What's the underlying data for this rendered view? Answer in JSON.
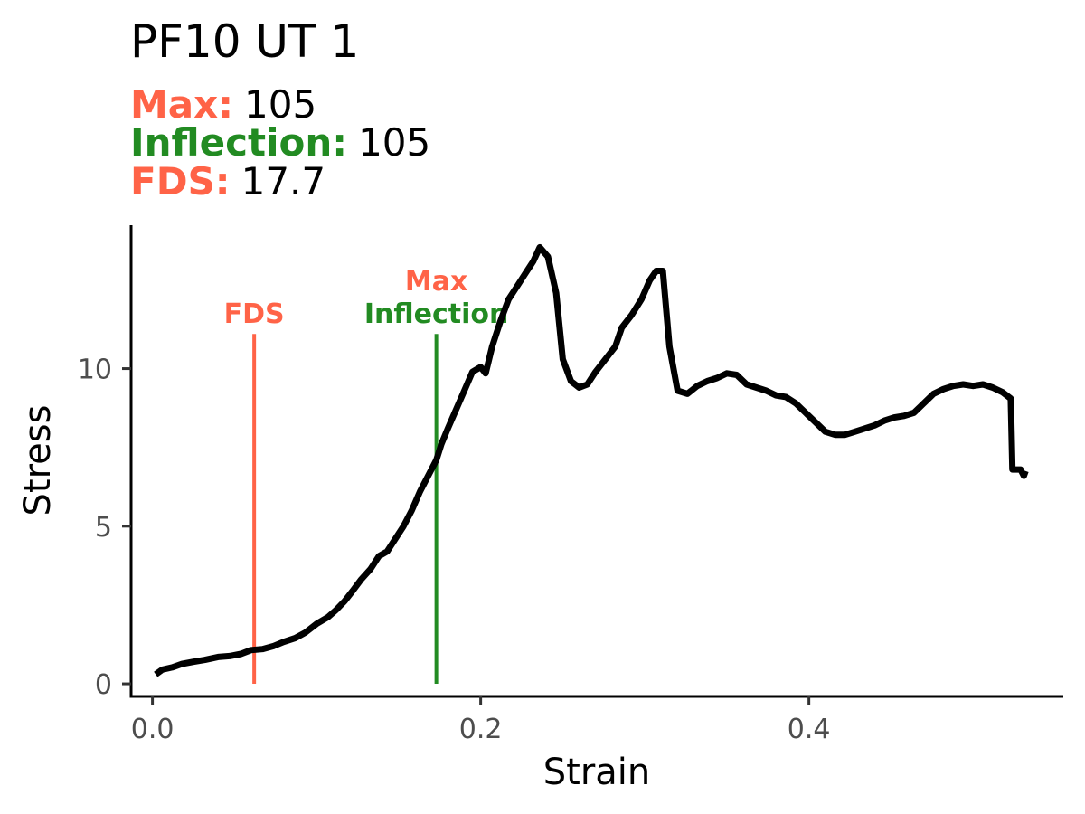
{
  "chart_data": {
    "type": "line",
    "title": "PF10 UT 1",
    "stats": [
      {
        "label": "Max:",
        "value": "105",
        "color": "#FF6347"
      },
      {
        "label": "Inflection:",
        "value": "105",
        "color": "#228B22"
      },
      {
        "label": "FDS:",
        "value": "17.7",
        "color": "#FF6347"
      }
    ],
    "xlabel": "Strain",
    "ylabel": "Stress",
    "xlim": [
      -0.013,
      0.555
    ],
    "ylim": [
      -0.4,
      14.55
    ],
    "xticks": [
      {
        "value": 0.0,
        "label": "0.0"
      },
      {
        "value": 0.2,
        "label": "0.2"
      },
      {
        "value": 0.4,
        "label": "0.4"
      }
    ],
    "yticks": [
      {
        "value": 0,
        "label": "0"
      },
      {
        "value": 5,
        "label": "5"
      },
      {
        "value": 10,
        "label": "10"
      }
    ],
    "grid": false,
    "line_color": "#000000",
    "vlines": [
      {
        "x": 0.062,
        "ymin": 0,
        "ymax": 11.1,
        "color": "#FF6347",
        "labels": [
          "FDS"
        ],
        "label_colors": [
          "#FF6347"
        ]
      },
      {
        "x": 0.173,
        "ymin": 0,
        "ymax": 11.1,
        "color": "#228B22",
        "labels": [
          "Max",
          "Inflection"
        ],
        "label_colors": [
          "#FF6347",
          "#228B22"
        ]
      }
    ],
    "series": [
      {
        "values": [
          [
            0.002,
            0.3
          ],
          [
            0.006,
            0.45
          ],
          [
            0.012,
            0.52
          ],
          [
            0.018,
            0.63
          ],
          [
            0.025,
            0.7
          ],
          [
            0.032,
            0.76
          ],
          [
            0.04,
            0.85
          ],
          [
            0.047,
            0.88
          ],
          [
            0.054,
            0.95
          ],
          [
            0.06,
            1.07
          ],
          [
            0.067,
            1.1
          ],
          [
            0.074,
            1.2
          ],
          [
            0.08,
            1.33
          ],
          [
            0.087,
            1.45
          ],
          [
            0.093,
            1.62
          ],
          [
            0.1,
            1.9
          ],
          [
            0.107,
            2.12
          ],
          [
            0.112,
            2.35
          ],
          [
            0.117,
            2.62
          ],
          [
            0.122,
            2.95
          ],
          [
            0.127,
            3.3
          ],
          [
            0.133,
            3.65
          ],
          [
            0.138,
            4.05
          ],
          [
            0.143,
            4.2
          ],
          [
            0.148,
            4.6
          ],
          [
            0.153,
            5.0
          ],
          [
            0.158,
            5.5
          ],
          [
            0.163,
            6.1
          ],
          [
            0.168,
            6.6
          ],
          [
            0.173,
            7.1
          ],
          [
            0.176,
            7.6
          ],
          [
            0.18,
            8.1
          ],
          [
            0.185,
            8.7
          ],
          [
            0.19,
            9.3
          ],
          [
            0.195,
            9.9
          ],
          [
            0.2,
            10.05
          ],
          [
            0.203,
            9.85
          ],
          [
            0.207,
            10.7
          ],
          [
            0.212,
            11.5
          ],
          [
            0.217,
            12.2
          ],
          [
            0.222,
            12.6
          ],
          [
            0.227,
            13.0
          ],
          [
            0.232,
            13.4
          ],
          [
            0.236,
            13.85
          ],
          [
            0.241,
            13.55
          ],
          [
            0.246,
            12.4
          ],
          [
            0.25,
            10.3
          ],
          [
            0.255,
            9.6
          ],
          [
            0.26,
            9.4
          ],
          [
            0.265,
            9.5
          ],
          [
            0.27,
            9.9
          ],
          [
            0.276,
            10.3
          ],
          [
            0.282,
            10.7
          ],
          [
            0.286,
            11.3
          ],
          [
            0.292,
            11.7
          ],
          [
            0.298,
            12.2
          ],
          [
            0.303,
            12.8
          ],
          [
            0.307,
            13.1
          ],
          [
            0.311,
            13.1
          ],
          [
            0.315,
            10.7
          ],
          [
            0.32,
            9.3
          ],
          [
            0.326,
            9.2
          ],
          [
            0.332,
            9.45
          ],
          [
            0.338,
            9.6
          ],
          [
            0.344,
            9.7
          ],
          [
            0.35,
            9.85
          ],
          [
            0.356,
            9.8
          ],
          [
            0.362,
            9.5
          ],
          [
            0.368,
            9.4
          ],
          [
            0.374,
            9.3
          ],
          [
            0.38,
            9.15
          ],
          [
            0.386,
            9.1
          ],
          [
            0.392,
            8.9
          ],
          [
            0.398,
            8.6
          ],
          [
            0.404,
            8.3
          ],
          [
            0.41,
            8.0
          ],
          [
            0.416,
            7.9
          ],
          [
            0.422,
            7.9
          ],
          [
            0.428,
            8.0
          ],
          [
            0.434,
            8.1
          ],
          [
            0.44,
            8.2
          ],
          [
            0.446,
            8.35
          ],
          [
            0.452,
            8.45
          ],
          [
            0.458,
            8.5
          ],
          [
            0.464,
            8.6
          ],
          [
            0.47,
            8.9
          ],
          [
            0.476,
            9.2
          ],
          [
            0.482,
            9.35
          ],
          [
            0.488,
            9.45
          ],
          [
            0.494,
            9.5
          ],
          [
            0.5,
            9.45
          ],
          [
            0.506,
            9.5
          ],
          [
            0.512,
            9.4
          ],
          [
            0.518,
            9.25
          ],
          [
            0.523,
            9.05
          ],
          [
            0.524,
            6.8
          ],
          [
            0.529,
            6.8
          ],
          [
            0.531,
            6.6
          ],
          [
            0.532,
            6.75
          ]
        ]
      }
    ]
  }
}
